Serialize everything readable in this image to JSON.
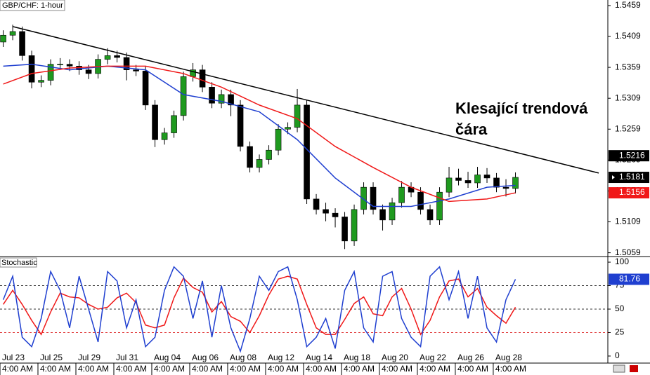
{
  "chart_data": [
    {
      "type": "candlestick",
      "title": "GBP/CHF: 1-hour",
      "x": [
        -0.5,
        0,
        0.5,
        1,
        1.5,
        2,
        2.5,
        3,
        3.5,
        4,
        4.5,
        5,
        5.5,
        6,
        6.5,
        7,
        7.5,
        8,
        8.5,
        9,
        9.5,
        10,
        10.5,
        11,
        11.5,
        12,
        12.5,
        13,
        13.5,
        14,
        14.5,
        15,
        15.5,
        16,
        16.5,
        17,
        17.5,
        18,
        18.5,
        19,
        19.5,
        20,
        20.5,
        21,
        21.5,
        22,
        22.5,
        23,
        23.5,
        24,
        24.5,
        25,
        25.5,
        26,
        26.5
      ],
      "open": [
        1.54,
        1.5411,
        1.5417,
        1.5378,
        1.5335,
        1.5338,
        1.5364,
        1.5364,
        1.5361,
        1.5355,
        1.5349,
        1.5372,
        1.5378,
        1.5375,
        1.5355,
        1.5353,
        1.5298,
        1.5242,
        1.5253,
        1.5281,
        1.5344,
        1.5355,
        1.5327,
        1.5301,
        1.5315,
        1.5298,
        1.5231,
        1.5197,
        1.521,
        1.5225,
        1.5259,
        1.5262,
        1.5298,
        1.5146,
        1.5129,
        1.5123,
        1.5117,
        1.5078,
        1.5129,
        1.5165,
        1.5129,
        1.5112,
        1.514,
        1.5165,
        1.5157,
        1.5129,
        1.5112,
        1.5157,
        1.518,
        1.5176,
        1.5172,
        1.5185,
        1.518,
        1.5165,
        1.5163
      ],
      "high": [
        1.5419,
        1.5428,
        1.5425,
        1.5386,
        1.5346,
        1.5372,
        1.5374,
        1.5372,
        1.5369,
        1.5363,
        1.538,
        1.539,
        1.5386,
        1.5383,
        1.5363,
        1.5361,
        1.5306,
        1.5261,
        1.5289,
        1.5352,
        1.5366,
        1.5363,
        1.5335,
        1.5323,
        1.5323,
        1.5306,
        1.5239,
        1.5218,
        1.5233,
        1.5267,
        1.527,
        1.5324,
        1.5306,
        1.5154,
        1.514,
        1.5131,
        1.5125,
        1.5137,
        1.5173,
        1.5173,
        1.5137,
        1.5148,
        1.5175,
        1.5173,
        1.5165,
        1.5137,
        1.5165,
        1.5198,
        1.5195,
        1.519,
        1.5198,
        1.5196,
        1.5188,
        1.5178,
        1.5189
      ],
      "low": [
        1.5392,
        1.5403,
        1.537,
        1.5325,
        1.5327,
        1.533,
        1.5355,
        1.5353,
        1.5347,
        1.534,
        1.5341,
        1.5364,
        1.5367,
        1.5338,
        1.5345,
        1.529,
        1.523,
        1.5234,
        1.5245,
        1.5273,
        1.5336,
        1.5319,
        1.5293,
        1.5293,
        1.528,
        1.5223,
        1.5189,
        1.5189,
        1.5202,
        1.5217,
        1.5251,
        1.5254,
        1.5138,
        1.5121,
        1.511,
        1.51,
        1.5065,
        1.507,
        1.5121,
        1.5121,
        1.5095,
        1.5104,
        1.5132,
        1.5149,
        1.5121,
        1.5104,
        1.5104,
        1.5149,
        1.5168,
        1.5164,
        1.5164,
        1.5172,
        1.5157,
        1.515,
        1.5155
      ],
      "close": [
        1.5411,
        1.5417,
        1.5378,
        1.5335,
        1.5338,
        1.5364,
        1.5364,
        1.5361,
        1.5355,
        1.5349,
        1.5372,
        1.5378,
        1.5375,
        1.5355,
        1.5353,
        1.5298,
        1.5242,
        1.5253,
        1.5281,
        1.5344,
        1.5355,
        1.5327,
        1.5301,
        1.5315,
        1.5298,
        1.5231,
        1.5197,
        1.521,
        1.5225,
        1.5259,
        1.5262,
        1.5298,
        1.5146,
        1.5129,
        1.5123,
        1.5117,
        1.5078,
        1.5129,
        1.5165,
        1.5129,
        1.5112,
        1.514,
        1.5165,
        1.5157,
        1.5129,
        1.5112,
        1.5157,
        1.518,
        1.5176,
        1.5172,
        1.5185,
        1.518,
        1.5165,
        1.5163,
        1.5181
      ],
      "up_color": "#1f9a1f",
      "down_color": "#000000",
      "overlays": [
        {
          "color": "#1f3fd0",
          "x": [
            -0.5,
            1,
            3,
            5,
            7,
            9,
            11,
            13,
            15,
            17,
            19,
            21,
            23,
            25,
            26.5
          ],
          "values": [
            1.5361,
            1.5364,
            1.5355,
            1.5361,
            1.5355,
            1.5315,
            1.5304,
            1.5287,
            1.5242,
            1.518,
            1.5134,
            1.5134,
            1.5146,
            1.5165,
            1.5168
          ]
        },
        {
          "color": "#f01818",
          "x": [
            -0.5,
            1,
            3,
            5,
            7,
            9,
            11,
            13,
            15,
            17,
            19,
            21,
            23,
            25,
            26.5
          ],
          "values": [
            1.5332,
            1.5349,
            1.5358,
            1.5361,
            1.5361,
            1.5349,
            1.5327,
            1.5298,
            1.5276,
            1.5231,
            1.5197,
            1.5165,
            1.5142,
            1.5146,
            1.5156
          ]
        }
      ],
      "trendline": {
        "x": [
          0,
          30.89
        ],
        "values": [
          1.5425,
          1.5188
        ]
      },
      "trendline_marker": 1.5216,
      "annotation": "Klesající trendová čára",
      "xlim": [
        -0.67,
        31.37
      ],
      "xticks": [
        {
          "value": -0.67,
          "label": "Jul 23"
        },
        {
          "value": 1.33,
          "label": "Jul 25"
        },
        {
          "value": 3.33,
          "label": "Jul 29"
        },
        {
          "value": 5.33,
          "label": "Jul 31"
        },
        {
          "value": 7.33,
          "label": "Aug 04"
        },
        {
          "value": 9.33,
          "label": "Aug 06"
        },
        {
          "value": 11.33,
          "label": "Aug 08"
        },
        {
          "value": 13.33,
          "label": "Aug 12"
        },
        {
          "value": 15.33,
          "label": "Aug 14"
        },
        {
          "value": 17.33,
          "label": "Aug 18"
        },
        {
          "value": 19.33,
          "label": "Aug 20"
        },
        {
          "value": 21.33,
          "label": "Aug 22"
        },
        {
          "value": 23.33,
          "label": "Aug 26"
        },
        {
          "value": 25.33,
          "label": "Aug 28"
        }
      ],
      "xtick_sublabels": [
        "4:00 AM",
        "4:00 AM",
        "4:00 AM",
        "4:00 AM",
        "4:00 AM",
        "4:00 AM",
        "4:00 AM",
        "4:00 AM",
        "4:00 AM",
        "4:00 AM",
        "4:00 AM",
        "4:00 AM",
        "4:00 AM",
        "4:00 AM"
      ],
      "ylim": [
        1.5054,
        1.5468
      ],
      "yticks": [
        1.5459,
        1.5409,
        1.5359,
        1.5309,
        1.5259,
        1.5209,
        1.5159,
        1.5109,
        1.5059
      ]
    },
    {
      "type": "line",
      "title": "Stochastic",
      "x": [
        -0.5,
        0,
        0.5,
        1,
        1.5,
        2,
        2.5,
        3,
        3.5,
        4,
        4.5,
        5,
        5.5,
        6,
        6.5,
        7,
        7.5,
        8,
        8.5,
        9,
        9.5,
        10,
        10.5,
        11,
        11.5,
        12,
        12.5,
        13,
        13.5,
        14,
        14.5,
        15,
        15.5,
        16,
        16.5,
        17,
        17.5,
        18,
        18.5,
        19,
        19.5,
        20,
        20.5,
        21,
        21.5,
        22,
        22.5,
        23,
        23.5,
        24,
        24.5,
        25,
        25.5,
        26,
        26.5
      ],
      "series": [
        {
          "color": "#1f3fd0",
          "values": [
            60,
            85,
            20,
            10,
            40,
            90,
            70,
            30,
            85,
            50,
            15,
            90,
            80,
            30,
            60,
            10,
            20,
            70,
            95,
            85,
            40,
            80,
            20,
            75,
            30,
            5,
            40,
            85,
            70,
            90,
            95,
            60,
            10,
            20,
            40,
            8,
            70,
            90,
            30,
            15,
            85,
            90,
            40,
            20,
            10,
            85,
            95,
            60,
            90,
            40,
            85,
            30,
            15,
            60,
            81.76
          ]
        },
        {
          "color": "#f01818",
          "values": [
            55,
            70,
            55,
            38,
            23,
            47,
            67,
            63,
            62,
            55,
            50,
            52,
            62,
            67,
            57,
            33,
            30,
            33,
            62,
            83,
            73,
            68,
            47,
            58,
            42,
            37,
            25,
            43,
            65,
            82,
            85,
            82,
            55,
            30,
            23,
            23,
            39,
            56,
            63,
            45,
            43,
            63,
            72,
            50,
            23,
            38,
            63,
            80,
            82,
            63,
            72,
            52,
            43,
            35,
            52
          ]
        }
      ],
      "levels": [
        {
          "value": 75,
          "color": "#333333"
        },
        {
          "value": 50,
          "color": "#333333"
        },
        {
          "value": 25,
          "color": "#e03030"
        }
      ],
      "ylim": [
        -7.5,
        104.5
      ],
      "yticks": [
        100,
        75,
        50,
        25,
        0
      ]
    }
  ]
}
